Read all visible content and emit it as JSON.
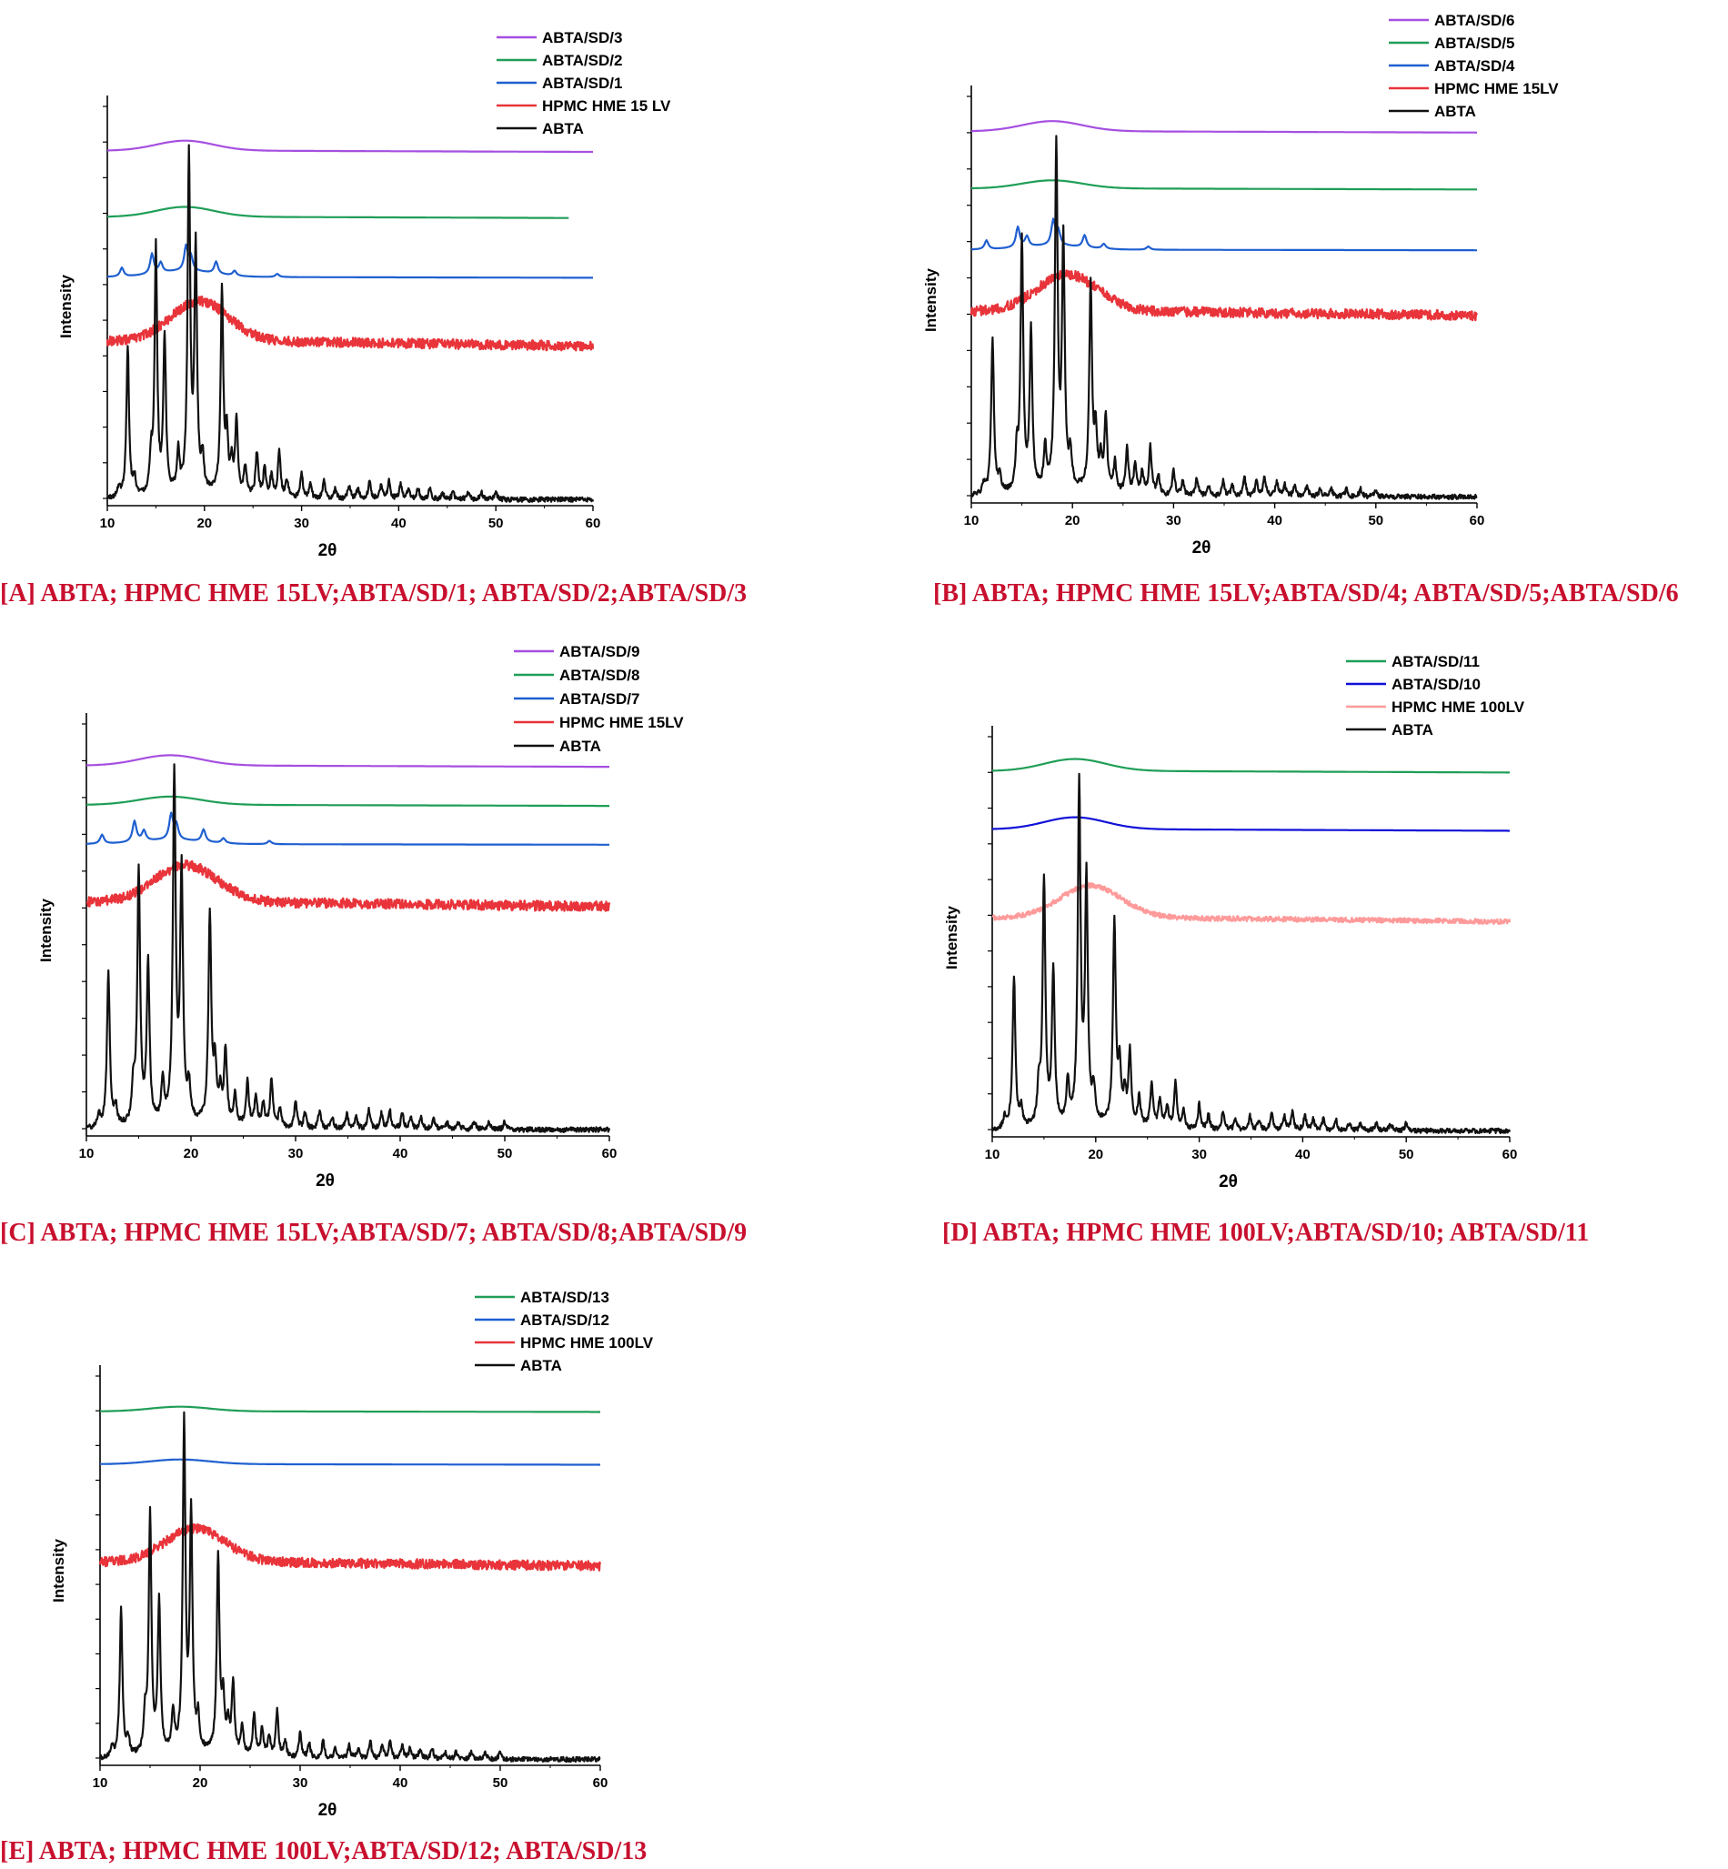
{
  "colors": {
    "purple": "#a64fe0",
    "green": "#1f9e57",
    "blue": "#1f5fd0",
    "navy": "#1010d8",
    "red": "#e8343a",
    "pink": "#ff9a9a",
    "black": "#111111",
    "caption": "#c8102e"
  },
  "chart_data": [
    {
      "id": "A",
      "type": "line",
      "title": "[A] ABTA; HPMC HME 15LV;ABTA/SD/1; ABTA/SD/2;ABTA/SD/3",
      "xlabel": "2θ",
      "ylabel": "Intensity",
      "xlim": [
        10,
        60
      ],
      "xticks": [
        "10",
        "20",
        "30",
        "40",
        "50",
        "60"
      ],
      "grid": false,
      "legend_position": "top-right",
      "series": [
        {
          "name": "ABTA/SD/3",
          "color": "purple",
          "kind": "amorphous",
          "offset": 0.885,
          "hump": 0.025,
          "hump_center": 18,
          "noise": 0,
          "x_end": 60
        },
        {
          "name": "ABTA/SD/2",
          "color": "green",
          "kind": "amorphous",
          "offset": 0.72,
          "hump": 0.025,
          "hump_center": 18,
          "noise": 0,
          "x_end": 57.5
        },
        {
          "name": "ABTA/SD/1",
          "color": "blue",
          "kind": "weak_crystalline",
          "offset": 0.57,
          "hump": 0.015,
          "hump_center": 18,
          "noise": 0,
          "x_end": 60
        },
        {
          "name": "HPMC HME 15 LV",
          "color": "red",
          "kind": "amorphous",
          "offset": 0.41,
          "hump": 0.1,
          "hump_center": 19.5,
          "noise": 0.012,
          "x_end": 60
        },
        {
          "name": "ABTA",
          "color": "black",
          "kind": "crystalline",
          "offset": 0.015,
          "hump": 0,
          "hump_center": 20,
          "noise": 0.006,
          "x_end": 60
        }
      ]
    },
    {
      "id": "B",
      "type": "line",
      "title": "[B] ABTA; HPMC HME 15LV;ABTA/SD/4; ABTA/SD/5;ABTA/SD/6",
      "xlabel": "2θ",
      "ylabel": "Intensity",
      "xlim": [
        10,
        60
      ],
      "xticks": [
        "10",
        "20",
        "30",
        "40",
        "50",
        "60"
      ],
      "grid": false,
      "legend_position": "top-right",
      "series": [
        {
          "name": "ABTA/SD/6",
          "color": "purple",
          "kind": "amorphous",
          "offset": 0.91,
          "hump": 0.025,
          "hump_center": 18,
          "noise": 0,
          "x_end": 60
        },
        {
          "name": "ABTA/SD/5",
          "color": "green",
          "kind": "amorphous",
          "offset": 0.77,
          "hump": 0.02,
          "hump_center": 18,
          "noise": 0,
          "x_end": 60
        },
        {
          "name": "ABTA/SD/4",
          "color": "blue",
          "kind": "weak_crystalline",
          "offset": 0.62,
          "hump": 0.01,
          "hump_center": 18,
          "noise": 0,
          "x_end": 60
        },
        {
          "name": "HPMC HME 15LV",
          "color": "red",
          "kind": "amorphous",
          "offset": 0.47,
          "hump": 0.09,
          "hump_center": 19.5,
          "noise": 0.012,
          "x_end": 60
        },
        {
          "name": "ABTA",
          "color": "black",
          "kind": "crystalline",
          "offset": 0.015,
          "hump": 0,
          "hump_center": 20,
          "noise": 0.006,
          "x_end": 60
        }
      ]
    },
    {
      "id": "C",
      "type": "line",
      "title": "[C] ABTA; HPMC HME 15LV;ABTA/SD/7; ABTA/SD/8;ABTA/SD/9",
      "xlabel": "2θ",
      "ylabel": "Intensity",
      "xlim": [
        10,
        60
      ],
      "xticks": [
        "10",
        "20",
        "30",
        "40",
        "50",
        "60"
      ],
      "grid": false,
      "legend_position": "top-right",
      "series": [
        {
          "name": "ABTA/SD/9",
          "color": "purple",
          "kind": "amorphous",
          "offset": 0.895,
          "hump": 0.025,
          "hump_center": 18,
          "noise": 0,
          "x_end": 60
        },
        {
          "name": "ABTA/SD/8",
          "color": "green",
          "kind": "amorphous",
          "offset": 0.8,
          "hump": 0.02,
          "hump_center": 18,
          "noise": 0,
          "x_end": 60
        },
        {
          "name": "ABTA/SD/7",
          "color": "blue",
          "kind": "weak_crystalline",
          "offset": 0.705,
          "hump": 0.01,
          "hump_center": 18,
          "noise": 0,
          "x_end": 60
        },
        {
          "name": "HPMC HME 15LV",
          "color": "red",
          "kind": "amorphous",
          "offset": 0.565,
          "hump": 0.09,
          "hump_center": 19.5,
          "noise": 0.012,
          "x_end": 60
        },
        {
          "name": "ABTA",
          "color": "black",
          "kind": "crystalline",
          "offset": 0.015,
          "hump": 0,
          "hump_center": 20,
          "noise": 0.006,
          "x_end": 60
        }
      ]
    },
    {
      "id": "D",
      "type": "line",
      "title": "[D] ABTA; HPMC HME 100LV;ABTA/SD/10; ABTA/SD/11",
      "xlabel": "2θ",
      "ylabel": "Intensity",
      "xlim": [
        10,
        60
      ],
      "xticks": [
        "10",
        "20",
        "30",
        "40",
        "50",
        "60"
      ],
      "grid": false,
      "legend_position": "top-right",
      "series": [
        {
          "name": "ABTA/SD/11",
          "color": "green",
          "kind": "amorphous",
          "offset": 0.91,
          "hump": 0.03,
          "hump_center": 18,
          "noise": 0,
          "x_end": 60
        },
        {
          "name": "ABTA/SD/10",
          "color": "navy",
          "kind": "amorphous",
          "offset": 0.765,
          "hump": 0.03,
          "hump_center": 18,
          "noise": 0,
          "x_end": 60
        },
        {
          "name": "HPMC HME 100LV",
          "color": "pink",
          "kind": "amorphous",
          "offset": 0.545,
          "hump": 0.08,
          "hump_center": 19.5,
          "noise": 0.006,
          "x_end": 60
        },
        {
          "name": "ABTA",
          "color": "black",
          "kind": "crystalline",
          "offset": 0.015,
          "hump": 0,
          "hump_center": 20,
          "noise": 0.006,
          "x_end": 60
        }
      ]
    },
    {
      "id": "E",
      "type": "line",
      "title": "[E] ABTA; HPMC HME 100LV;ABTA/SD/12; ABTA/SD/13",
      "xlabel": "2θ",
      "ylabel": "Intensity",
      "xlim": [
        10,
        60
      ],
      "xticks": [
        "10",
        "20",
        "30",
        "40",
        "50",
        "60"
      ],
      "grid": false,
      "legend_position": "top-right",
      "series": [
        {
          "name": "ABTA/SD/13",
          "color": "green",
          "kind": "amorphous",
          "offset": 0.905,
          "hump": 0.012,
          "hump_center": 18,
          "noise": 0,
          "x_end": 60
        },
        {
          "name": "ABTA/SD/12",
          "color": "blue",
          "kind": "amorphous",
          "offset": 0.77,
          "hump": 0.012,
          "hump_center": 18,
          "noise": 0,
          "x_end": 60
        },
        {
          "name": "HPMC HME 100LV",
          "color": "red",
          "kind": "amorphous",
          "offset": 0.52,
          "hump": 0.085,
          "hump_center": 19.5,
          "noise": 0.012,
          "x_end": 60
        },
        {
          "name": "ABTA",
          "color": "black",
          "kind": "crystalline",
          "offset": 0.015,
          "hump": 0,
          "hump_center": 20,
          "noise": 0.006,
          "x_end": 60
        }
      ]
    }
  ],
  "abta_reflections": {
    "two_theta": [
      11.2,
      12.1,
      12.8,
      14.5,
      15.0,
      15.9,
      17.3,
      18.4,
      19.1,
      19.8,
      21.8,
      22.3,
      22.8,
      23.3,
      24.2,
      25.4,
      26.2,
      26.9,
      27.7,
      28.5,
      30.0,
      30.9,
      32.3,
      33.5,
      34.9,
      35.8,
      37.0,
      38.2,
      39.0,
      40.2,
      41.0,
      42.0,
      43.2,
      44.5,
      45.6,
      47.1,
      48.5,
      50.0
    ],
    "relative_intensity": [
      0.03,
      0.42,
      0.05,
      0.1,
      0.68,
      0.43,
      0.11,
      0.93,
      0.67,
      0.09,
      0.56,
      0.15,
      0.08,
      0.2,
      0.08,
      0.12,
      0.08,
      0.06,
      0.13,
      0.05,
      0.07,
      0.04,
      0.05,
      0.03,
      0.04,
      0.03,
      0.05,
      0.04,
      0.05,
      0.04,
      0.03,
      0.03,
      0.03,
      0.02,
      0.02,
      0.02,
      0.02,
      0.02
    ]
  },
  "sd_weak_reflections": {
    "two_theta": [
      11.5,
      14.6,
      15.5,
      18.1,
      18.6,
      21.2,
      23.1,
      27.5
    ],
    "relative_intensity": [
      0.022,
      0.05,
      0.025,
      0.06,
      0.035,
      0.03,
      0.012,
      0.008
    ]
  }
}
